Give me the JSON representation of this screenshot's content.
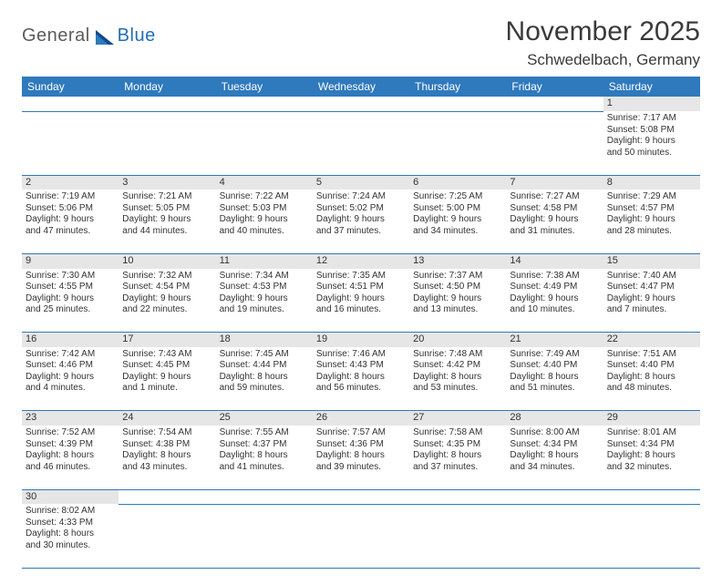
{
  "header": {
    "logo_part1": "General",
    "logo_part2": "Blue",
    "month_title": "November 2025",
    "location": "Schwedelbach, Germany"
  },
  "colors": {
    "header_bg": "#2f79bd",
    "header_text": "#ffffff",
    "daynum_bg": "#e6e6e6",
    "rule": "#2f79bd",
    "logo_gray": "#5c5c5c",
    "logo_blue": "#1f6fb2"
  },
  "day_labels": [
    "Sunday",
    "Monday",
    "Tuesday",
    "Wednesday",
    "Thursday",
    "Friday",
    "Saturday"
  ],
  "weeks": [
    [
      null,
      null,
      null,
      null,
      null,
      null,
      {
        "n": "1",
        "sunrise": "Sunrise: 7:17 AM",
        "sunset": "Sunset: 5:08 PM",
        "daylight1": "Daylight: 9 hours",
        "daylight2": "and 50 minutes."
      }
    ],
    [
      {
        "n": "2",
        "sunrise": "Sunrise: 7:19 AM",
        "sunset": "Sunset: 5:06 PM",
        "daylight1": "Daylight: 9 hours",
        "daylight2": "and 47 minutes."
      },
      {
        "n": "3",
        "sunrise": "Sunrise: 7:21 AM",
        "sunset": "Sunset: 5:05 PM",
        "daylight1": "Daylight: 9 hours",
        "daylight2": "and 44 minutes."
      },
      {
        "n": "4",
        "sunrise": "Sunrise: 7:22 AM",
        "sunset": "Sunset: 5:03 PM",
        "daylight1": "Daylight: 9 hours",
        "daylight2": "and 40 minutes."
      },
      {
        "n": "5",
        "sunrise": "Sunrise: 7:24 AM",
        "sunset": "Sunset: 5:02 PM",
        "daylight1": "Daylight: 9 hours",
        "daylight2": "and 37 minutes."
      },
      {
        "n": "6",
        "sunrise": "Sunrise: 7:25 AM",
        "sunset": "Sunset: 5:00 PM",
        "daylight1": "Daylight: 9 hours",
        "daylight2": "and 34 minutes."
      },
      {
        "n": "7",
        "sunrise": "Sunrise: 7:27 AM",
        "sunset": "Sunset: 4:58 PM",
        "daylight1": "Daylight: 9 hours",
        "daylight2": "and 31 minutes."
      },
      {
        "n": "8",
        "sunrise": "Sunrise: 7:29 AM",
        "sunset": "Sunset: 4:57 PM",
        "daylight1": "Daylight: 9 hours",
        "daylight2": "and 28 minutes."
      }
    ],
    [
      {
        "n": "9",
        "sunrise": "Sunrise: 7:30 AM",
        "sunset": "Sunset: 4:55 PM",
        "daylight1": "Daylight: 9 hours",
        "daylight2": "and 25 minutes."
      },
      {
        "n": "10",
        "sunrise": "Sunrise: 7:32 AM",
        "sunset": "Sunset: 4:54 PM",
        "daylight1": "Daylight: 9 hours",
        "daylight2": "and 22 minutes."
      },
      {
        "n": "11",
        "sunrise": "Sunrise: 7:34 AM",
        "sunset": "Sunset: 4:53 PM",
        "daylight1": "Daylight: 9 hours",
        "daylight2": "and 19 minutes."
      },
      {
        "n": "12",
        "sunrise": "Sunrise: 7:35 AM",
        "sunset": "Sunset: 4:51 PM",
        "daylight1": "Daylight: 9 hours",
        "daylight2": "and 16 minutes."
      },
      {
        "n": "13",
        "sunrise": "Sunrise: 7:37 AM",
        "sunset": "Sunset: 4:50 PM",
        "daylight1": "Daylight: 9 hours",
        "daylight2": "and 13 minutes."
      },
      {
        "n": "14",
        "sunrise": "Sunrise: 7:38 AM",
        "sunset": "Sunset: 4:49 PM",
        "daylight1": "Daylight: 9 hours",
        "daylight2": "and 10 minutes."
      },
      {
        "n": "15",
        "sunrise": "Sunrise: 7:40 AM",
        "sunset": "Sunset: 4:47 PM",
        "daylight1": "Daylight: 9 hours",
        "daylight2": "and 7 minutes."
      }
    ],
    [
      {
        "n": "16",
        "sunrise": "Sunrise: 7:42 AM",
        "sunset": "Sunset: 4:46 PM",
        "daylight1": "Daylight: 9 hours",
        "daylight2": "and 4 minutes."
      },
      {
        "n": "17",
        "sunrise": "Sunrise: 7:43 AM",
        "sunset": "Sunset: 4:45 PM",
        "daylight1": "Daylight: 9 hours",
        "daylight2": "and 1 minute."
      },
      {
        "n": "18",
        "sunrise": "Sunrise: 7:45 AM",
        "sunset": "Sunset: 4:44 PM",
        "daylight1": "Daylight: 8 hours",
        "daylight2": "and 59 minutes."
      },
      {
        "n": "19",
        "sunrise": "Sunrise: 7:46 AM",
        "sunset": "Sunset: 4:43 PM",
        "daylight1": "Daylight: 8 hours",
        "daylight2": "and 56 minutes."
      },
      {
        "n": "20",
        "sunrise": "Sunrise: 7:48 AM",
        "sunset": "Sunset: 4:42 PM",
        "daylight1": "Daylight: 8 hours",
        "daylight2": "and 53 minutes."
      },
      {
        "n": "21",
        "sunrise": "Sunrise: 7:49 AM",
        "sunset": "Sunset: 4:40 PM",
        "daylight1": "Daylight: 8 hours",
        "daylight2": "and 51 minutes."
      },
      {
        "n": "22",
        "sunrise": "Sunrise: 7:51 AM",
        "sunset": "Sunset: 4:40 PM",
        "daylight1": "Daylight: 8 hours",
        "daylight2": "and 48 minutes."
      }
    ],
    [
      {
        "n": "23",
        "sunrise": "Sunrise: 7:52 AM",
        "sunset": "Sunset: 4:39 PM",
        "daylight1": "Daylight: 8 hours",
        "daylight2": "and 46 minutes."
      },
      {
        "n": "24",
        "sunrise": "Sunrise: 7:54 AM",
        "sunset": "Sunset: 4:38 PM",
        "daylight1": "Daylight: 8 hours",
        "daylight2": "and 43 minutes."
      },
      {
        "n": "25",
        "sunrise": "Sunrise: 7:55 AM",
        "sunset": "Sunset: 4:37 PM",
        "daylight1": "Daylight: 8 hours",
        "daylight2": "and 41 minutes."
      },
      {
        "n": "26",
        "sunrise": "Sunrise: 7:57 AM",
        "sunset": "Sunset: 4:36 PM",
        "daylight1": "Daylight: 8 hours",
        "daylight2": "and 39 minutes."
      },
      {
        "n": "27",
        "sunrise": "Sunrise: 7:58 AM",
        "sunset": "Sunset: 4:35 PM",
        "daylight1": "Daylight: 8 hours",
        "daylight2": "and 37 minutes."
      },
      {
        "n": "28",
        "sunrise": "Sunrise: 8:00 AM",
        "sunset": "Sunset: 4:34 PM",
        "daylight1": "Daylight: 8 hours",
        "daylight2": "and 34 minutes."
      },
      {
        "n": "29",
        "sunrise": "Sunrise: 8:01 AM",
        "sunset": "Sunset: 4:34 PM",
        "daylight1": "Daylight: 8 hours",
        "daylight2": "and 32 minutes."
      }
    ],
    [
      {
        "n": "30",
        "sunrise": "Sunrise: 8:02 AM",
        "sunset": "Sunset: 4:33 PM",
        "daylight1": "Daylight: 8 hours",
        "daylight2": "and 30 minutes."
      },
      null,
      null,
      null,
      null,
      null,
      null
    ]
  ]
}
